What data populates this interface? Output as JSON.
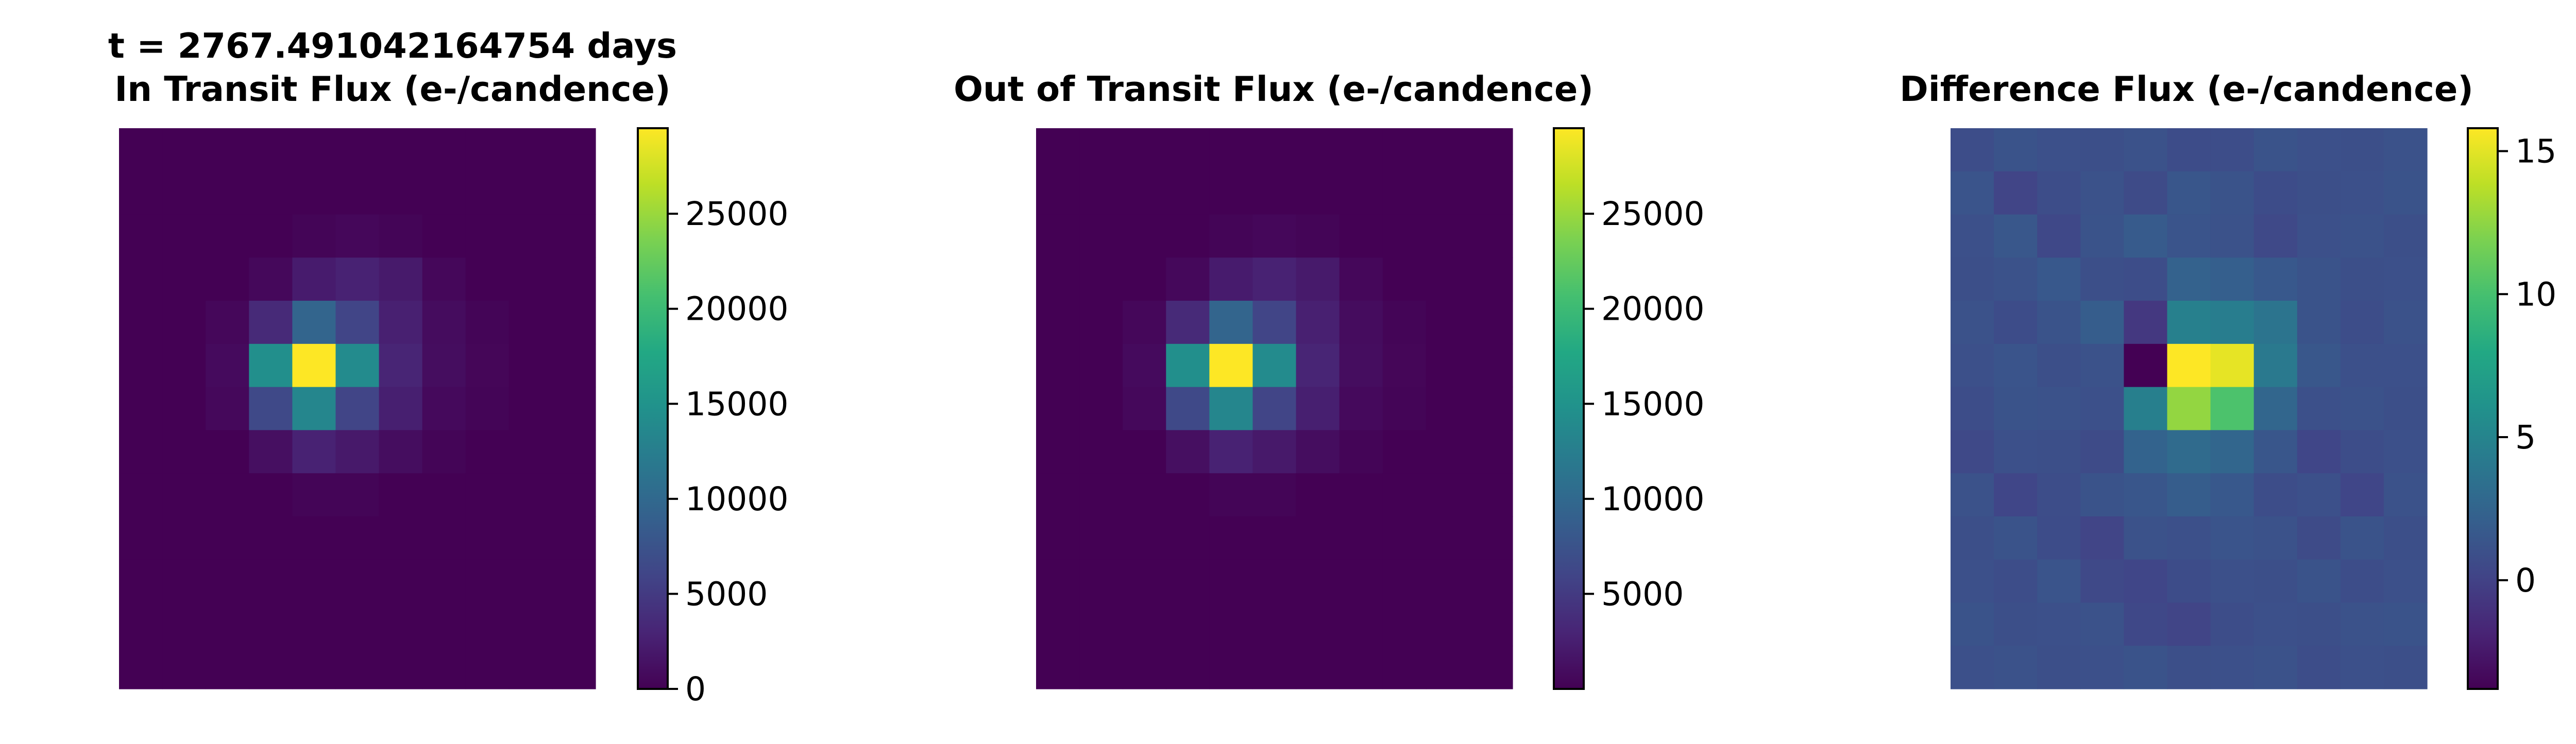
{
  "figure": {
    "panels": [
      {
        "title_lines": [
          "t = 2767.491042164754 days",
          "In Transit Flux (e-/candence)"
        ],
        "colorbar_ticks": [
          "0",
          "5000",
          "10000",
          "15000",
          "20000",
          "25000"
        ]
      },
      {
        "title_lines": [
          "Out of Transit Flux (e-/candence)"
        ],
        "colorbar_ticks": [
          "5000",
          "10000",
          "15000",
          "20000",
          "25000"
        ]
      },
      {
        "title_lines": [
          "Difference Flux (e-/candence)"
        ],
        "colorbar_ticks": [
          "0",
          "5",
          "10",
          "15"
        ]
      }
    ]
  },
  "chart_data": [
    {
      "type": "heatmap",
      "title": "t = 2767.491042164754 days\nIn Transit Flux (e-/candence)",
      "colormap": "viridis",
      "vmin": 0,
      "vmax": 29500,
      "colorbar_ticks": [
        0,
        5000,
        10000,
        15000,
        20000,
        25000
      ],
      "grid": false,
      "axes": "off",
      "values": [
        [
          0,
          0,
          0,
          0,
          0,
          0,
          0,
          0,
          0,
          0,
          0
        ],
        [
          0,
          0,
          0,
          0,
          0,
          0,
          0,
          0,
          0,
          0,
          0
        ],
        [
          0,
          0,
          0,
          0,
          300,
          500,
          300,
          0,
          0,
          0,
          0
        ],
        [
          0,
          0,
          0,
          600,
          2200,
          2800,
          2100,
          500,
          0,
          0,
          0
        ],
        [
          0,
          0,
          500,
          3500,
          9500,
          6000,
          2600,
          900,
          300,
          0,
          0
        ],
        [
          0,
          0,
          800,
          14500,
          29500,
          14000,
          3000,
          1000,
          400,
          0,
          0
        ],
        [
          0,
          0,
          600,
          6500,
          13500,
          6000,
          2500,
          700,
          300,
          0,
          0
        ],
        [
          0,
          0,
          0,
          1200,
          2800,
          2000,
          1000,
          300,
          0,
          0,
          0
        ],
        [
          0,
          0,
          0,
          0,
          300,
          300,
          0,
          0,
          0,
          0,
          0
        ],
        [
          0,
          0,
          0,
          0,
          0,
          0,
          0,
          0,
          0,
          0,
          0
        ],
        [
          0,
          0,
          0,
          0,
          0,
          0,
          0,
          0,
          0,
          0,
          0
        ],
        [
          0,
          0,
          0,
          0,
          0,
          0,
          0,
          0,
          0,
          0,
          0
        ],
        [
          0,
          0,
          0,
          0,
          0,
          0,
          0,
          0,
          0,
          0,
          0
        ]
      ]
    },
    {
      "type": "heatmap",
      "title": "Out of Transit Flux (e-/candence)",
      "colormap": "viridis",
      "vmin": 0,
      "vmax": 29500,
      "colorbar_ticks": [
        5000,
        10000,
        15000,
        20000,
        25000
      ],
      "grid": false,
      "axes": "off",
      "values": [
        [
          0,
          0,
          0,
          0,
          0,
          0,
          0,
          0,
          0,
          0,
          0
        ],
        [
          0,
          0,
          0,
          0,
          0,
          0,
          0,
          0,
          0,
          0,
          0
        ],
        [
          0,
          0,
          0,
          0,
          300,
          500,
          300,
          0,
          0,
          0,
          0
        ],
        [
          0,
          0,
          0,
          600,
          2200,
          2800,
          2100,
          500,
          0,
          0,
          0
        ],
        [
          0,
          0,
          500,
          3500,
          9500,
          6000,
          2600,
          900,
          300,
          0,
          0
        ],
        [
          0,
          0,
          800,
          14500,
          29500,
          14000,
          3000,
          1000,
          400,
          0,
          0
        ],
        [
          0,
          0,
          600,
          6500,
          13500,
          6000,
          2500,
          700,
          300,
          0,
          0
        ],
        [
          0,
          0,
          0,
          1200,
          2800,
          2000,
          1000,
          300,
          0,
          0,
          0
        ],
        [
          0,
          0,
          0,
          0,
          300,
          300,
          0,
          0,
          0,
          0,
          0
        ],
        [
          0,
          0,
          0,
          0,
          0,
          0,
          0,
          0,
          0,
          0,
          0
        ],
        [
          0,
          0,
          0,
          0,
          0,
          0,
          0,
          0,
          0,
          0,
          0
        ],
        [
          0,
          0,
          0,
          0,
          0,
          0,
          0,
          0,
          0,
          0,
          0
        ],
        [
          0,
          0,
          0,
          0,
          0,
          0,
          0,
          0,
          0,
          0,
          0
        ]
      ]
    },
    {
      "type": "heatmap",
      "title": "Difference Flux (e-/candence)",
      "colormap": "viridis",
      "vmin": -3.8,
      "vmax": 15.8,
      "colorbar_ticks": [
        0,
        5,
        10,
        15
      ],
      "grid": false,
      "axes": "off",
      "values": [
        [
          0.8,
          1.2,
          1.0,
          0.9,
          1.1,
          0.7,
          0.8,
          1.2,
          1.0,
          0.9,
          1.1
        ],
        [
          1.3,
          0.2,
          0.8,
          1.1,
          0.6,
          1.4,
          1.2,
          0.7,
          0.9,
          1.0,
          1.2
        ],
        [
          1.0,
          1.5,
          0.4,
          1.2,
          1.8,
          1.3,
          1.1,
          0.5,
          1.0,
          1.1,
          0.9
        ],
        [
          0.9,
          1.1,
          1.6,
          0.9,
          0.8,
          2.3,
          2.1,
          1.6,
          1.2,
          0.9,
          1.0
        ],
        [
          1.1,
          0.7,
          1.2,
          1.9,
          -0.6,
          4.7,
          4.4,
          3.7,
          1.2,
          0.8,
          1.1
        ],
        [
          1.0,
          1.3,
          0.9,
          1.1,
          -3.8,
          15.8,
          15.1,
          4.1,
          1.5,
          1.0,
          1.0
        ],
        [
          0.8,
          1.2,
          1.1,
          1.0,
          4.6,
          12.6,
          10.2,
          2.6,
          1.0,
          1.1,
          0.9
        ],
        [
          0.5,
          1.0,
          0.9,
          0.6,
          2.4,
          3.0,
          2.6,
          1.4,
          0.3,
          0.8,
          1.0
        ],
        [
          1.1,
          0.3,
          0.8,
          1.2,
          1.4,
          1.9,
          1.6,
          0.8,
          1.0,
          0.3,
          1.1
        ],
        [
          0.9,
          1.2,
          0.7,
          0.2,
          1.1,
          1.0,
          1.3,
          1.1,
          0.6,
          1.2,
          0.9
        ],
        [
          1.0,
          0.8,
          1.3,
          0.5,
          0.3,
          0.7,
          1.0,
          0.9,
          1.2,
          0.8,
          1.0
        ],
        [
          1.2,
          0.9,
          1.0,
          1.1,
          0.4,
          0.2,
          0.8,
          1.0,
          0.9,
          1.1,
          1.2
        ],
        [
          1.0,
          1.1,
          0.9,
          1.0,
          1.2,
          0.9,
          1.0,
          1.1,
          0.8,
          1.0,
          0.9
        ]
      ]
    }
  ]
}
